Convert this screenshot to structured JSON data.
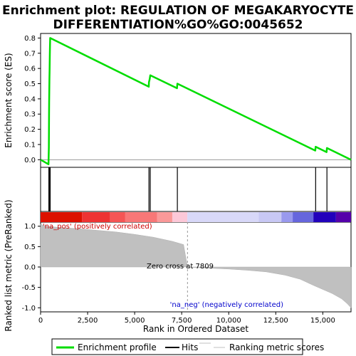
{
  "chart_data": {
    "type": "line",
    "title_line1": "Enrichment plot: REGULATION OF MEGAKARYOCYTE",
    "title_line2": "DIFFERENTIATION%GO%GO:0045652",
    "xlabel": "Rank in Ordered Dataset",
    "es_ylabel": "Enrichment score (ES)",
    "metric_ylabel": "Ranked list metric (PreRanked)",
    "xlim": [
      0,
      16500
    ],
    "x_ticks": [
      0,
      2500,
      5000,
      7500,
      10000,
      12500,
      15000
    ],
    "x_tick_labels": [
      "0",
      "2,500",
      "5,000",
      "7,500",
      "10,000",
      "12,500",
      "15,000"
    ],
    "es_ylim": [
      -0.05,
      0.83
    ],
    "es_ticks": [
      0.0,
      0.1,
      0.2,
      0.3,
      0.4,
      0.5,
      0.6,
      0.7,
      0.8
    ],
    "es_tick_labels": [
      "0.0",
      "0.1",
      "0.2",
      "0.3",
      "0.4",
      "0.5",
      "0.6",
      "0.7",
      "0.8"
    ],
    "metric_ylim": [
      -1.1,
      1.1
    ],
    "metric_ticks": [
      1.0,
      0.5,
      0.0,
      -0.5,
      -1.0
    ],
    "metric_tick_labels": [
      "1.0",
      "0.5",
      "0.0",
      "-0.5",
      "-1.0"
    ],
    "enrichment_profile": {
      "name": "Enrichment profile",
      "color": "#00dd00",
      "points": [
        [
          0,
          0.0
        ],
        [
          420,
          -0.03
        ],
        [
          440,
          0.08
        ],
        [
          450,
          0.3
        ],
        [
          455,
          0.38
        ],
        [
          462,
          0.45
        ],
        [
          470,
          0.53
        ],
        [
          478,
          0.58
        ],
        [
          485,
          0.64
        ],
        [
          492,
          0.7
        ],
        [
          500,
          0.75
        ],
        [
          510,
          0.8
        ],
        [
          5750,
          0.48
        ],
        [
          5760,
          0.51
        ],
        [
          5800,
          0.53
        ],
        [
          5830,
          0.555
        ],
        [
          7250,
          0.47
        ],
        [
          7270,
          0.5
        ],
        [
          14600,
          0.06
        ],
        [
          14620,
          0.085
        ],
        [
          15200,
          0.05
        ],
        [
          15220,
          0.077
        ],
        [
          16500,
          0.0
        ]
      ]
    },
    "hits": {
      "name": "Hits",
      "positions": [
        440,
        455,
        462,
        470,
        478,
        485,
        492,
        500,
        510,
        5760,
        5830,
        7270,
        14620,
        15220
      ]
    },
    "ranking_metric": {
      "name": "Ranking metric scores",
      "color": "#c0c0c0",
      "points": [
        [
          0,
          1.05
        ],
        [
          300,
          1.0
        ],
        [
          1000,
          0.97
        ],
        [
          2000,
          0.94
        ],
        [
          3000,
          0.9
        ],
        [
          4000,
          0.86
        ],
        [
          5000,
          0.8
        ],
        [
          6000,
          0.73
        ],
        [
          7000,
          0.63
        ],
        [
          7600,
          0.55
        ],
        [
          7809,
          0.0
        ],
        [
          8500,
          -0.02
        ],
        [
          10000,
          -0.05
        ],
        [
          11000,
          -0.08
        ],
        [
          12000,
          -0.12
        ],
        [
          13000,
          -0.2
        ],
        [
          13800,
          -0.3
        ],
        [
          14500,
          -0.45
        ],
        [
          15000,
          -0.55
        ],
        [
          15500,
          -0.65
        ],
        [
          16000,
          -0.78
        ],
        [
          16300,
          -0.9
        ],
        [
          16500,
          -1.0
        ]
      ]
    },
    "zero_cross": 7809,
    "zero_cross_label": "Zero cross at 7809",
    "pos_label": "'na_pos' (positively correlated)",
    "neg_label": "'na_neg' (negatively correlated)",
    "pos_label_color": "#cc0000",
    "neg_label_color": "#0000cc",
    "heatmap_segments": [
      {
        "from": 0,
        "to": 2200,
        "color": "#dd1100"
      },
      {
        "from": 2200,
        "to": 3700,
        "color": "#ee3333"
      },
      {
        "from": 3700,
        "to": 4500,
        "color": "#f55555"
      },
      {
        "from": 4500,
        "to": 6200,
        "color": "#f87777"
      },
      {
        "from": 6200,
        "to": 7000,
        "color": "#fa9999"
      },
      {
        "from": 7000,
        "to": 7800,
        "color": "#fcc8d8"
      },
      {
        "from": 7800,
        "to": 11600,
        "color": "#d8d8f8"
      },
      {
        "from": 11600,
        "to": 12800,
        "color": "#c8c8f4"
      },
      {
        "from": 12800,
        "to": 13400,
        "color": "#9999ee"
      },
      {
        "from": 13400,
        "to": 14500,
        "color": "#6666dd"
      },
      {
        "from": 14500,
        "to": 15700,
        "color": "#2200bb"
      },
      {
        "from": 15700,
        "to": 16500,
        "color": "#5500aa"
      }
    ],
    "legend": [
      "Enrichment profile",
      "Hits",
      "Ranking metric scores"
    ],
    "legend_placement": "bottom"
  }
}
